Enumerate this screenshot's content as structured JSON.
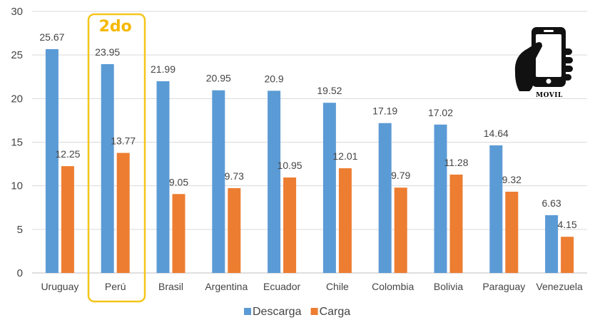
{
  "chart_data": {
    "type": "bar",
    "title": "",
    "xlabel": "",
    "ylabel": "",
    "ylim": [
      0,
      30
    ],
    "yticks": [
      0,
      5,
      10,
      15,
      20,
      25,
      30
    ],
    "grid": true,
    "legend_position": "bottom",
    "categories": [
      "Uruguay",
      "Perú",
      "Brasil",
      "Argentina",
      "Ecuador",
      "Chile",
      "Colombia",
      "Bolivia",
      "Paraguay",
      "Venezuela"
    ],
    "series": [
      {
        "name": "Descarga",
        "color": "#5b9bd5",
        "values": [
          25.67,
          23.95,
          21.99,
          20.95,
          20.9,
          19.52,
          17.19,
          17.02,
          14.64,
          6.63
        ]
      },
      {
        "name": "Carga",
        "color": "#ed7d31",
        "values": [
          12.25,
          13.77,
          9.05,
          9.73,
          10.95,
          12.01,
          9.79,
          11.28,
          9.32,
          4.15
        ]
      }
    ],
    "value_labels": [
      [
        "25.67",
        "23.95",
        "21.99",
        "20.95",
        "20.9",
        "19.52",
        "17.19",
        "17.02",
        "14.64",
        "6.63"
      ],
      [
        "12.25",
        "13.77",
        "9.05",
        "9.73",
        "10.95",
        "12.01",
        "9.79",
        "11.28",
        "9.32",
        "4.15"
      ]
    ],
    "annotation": {
      "text": "2do",
      "category": "Perú",
      "color": "#f5b800"
    }
  },
  "badge": {
    "label": "MOVIL",
    "icon": "phone-hand-icon"
  }
}
